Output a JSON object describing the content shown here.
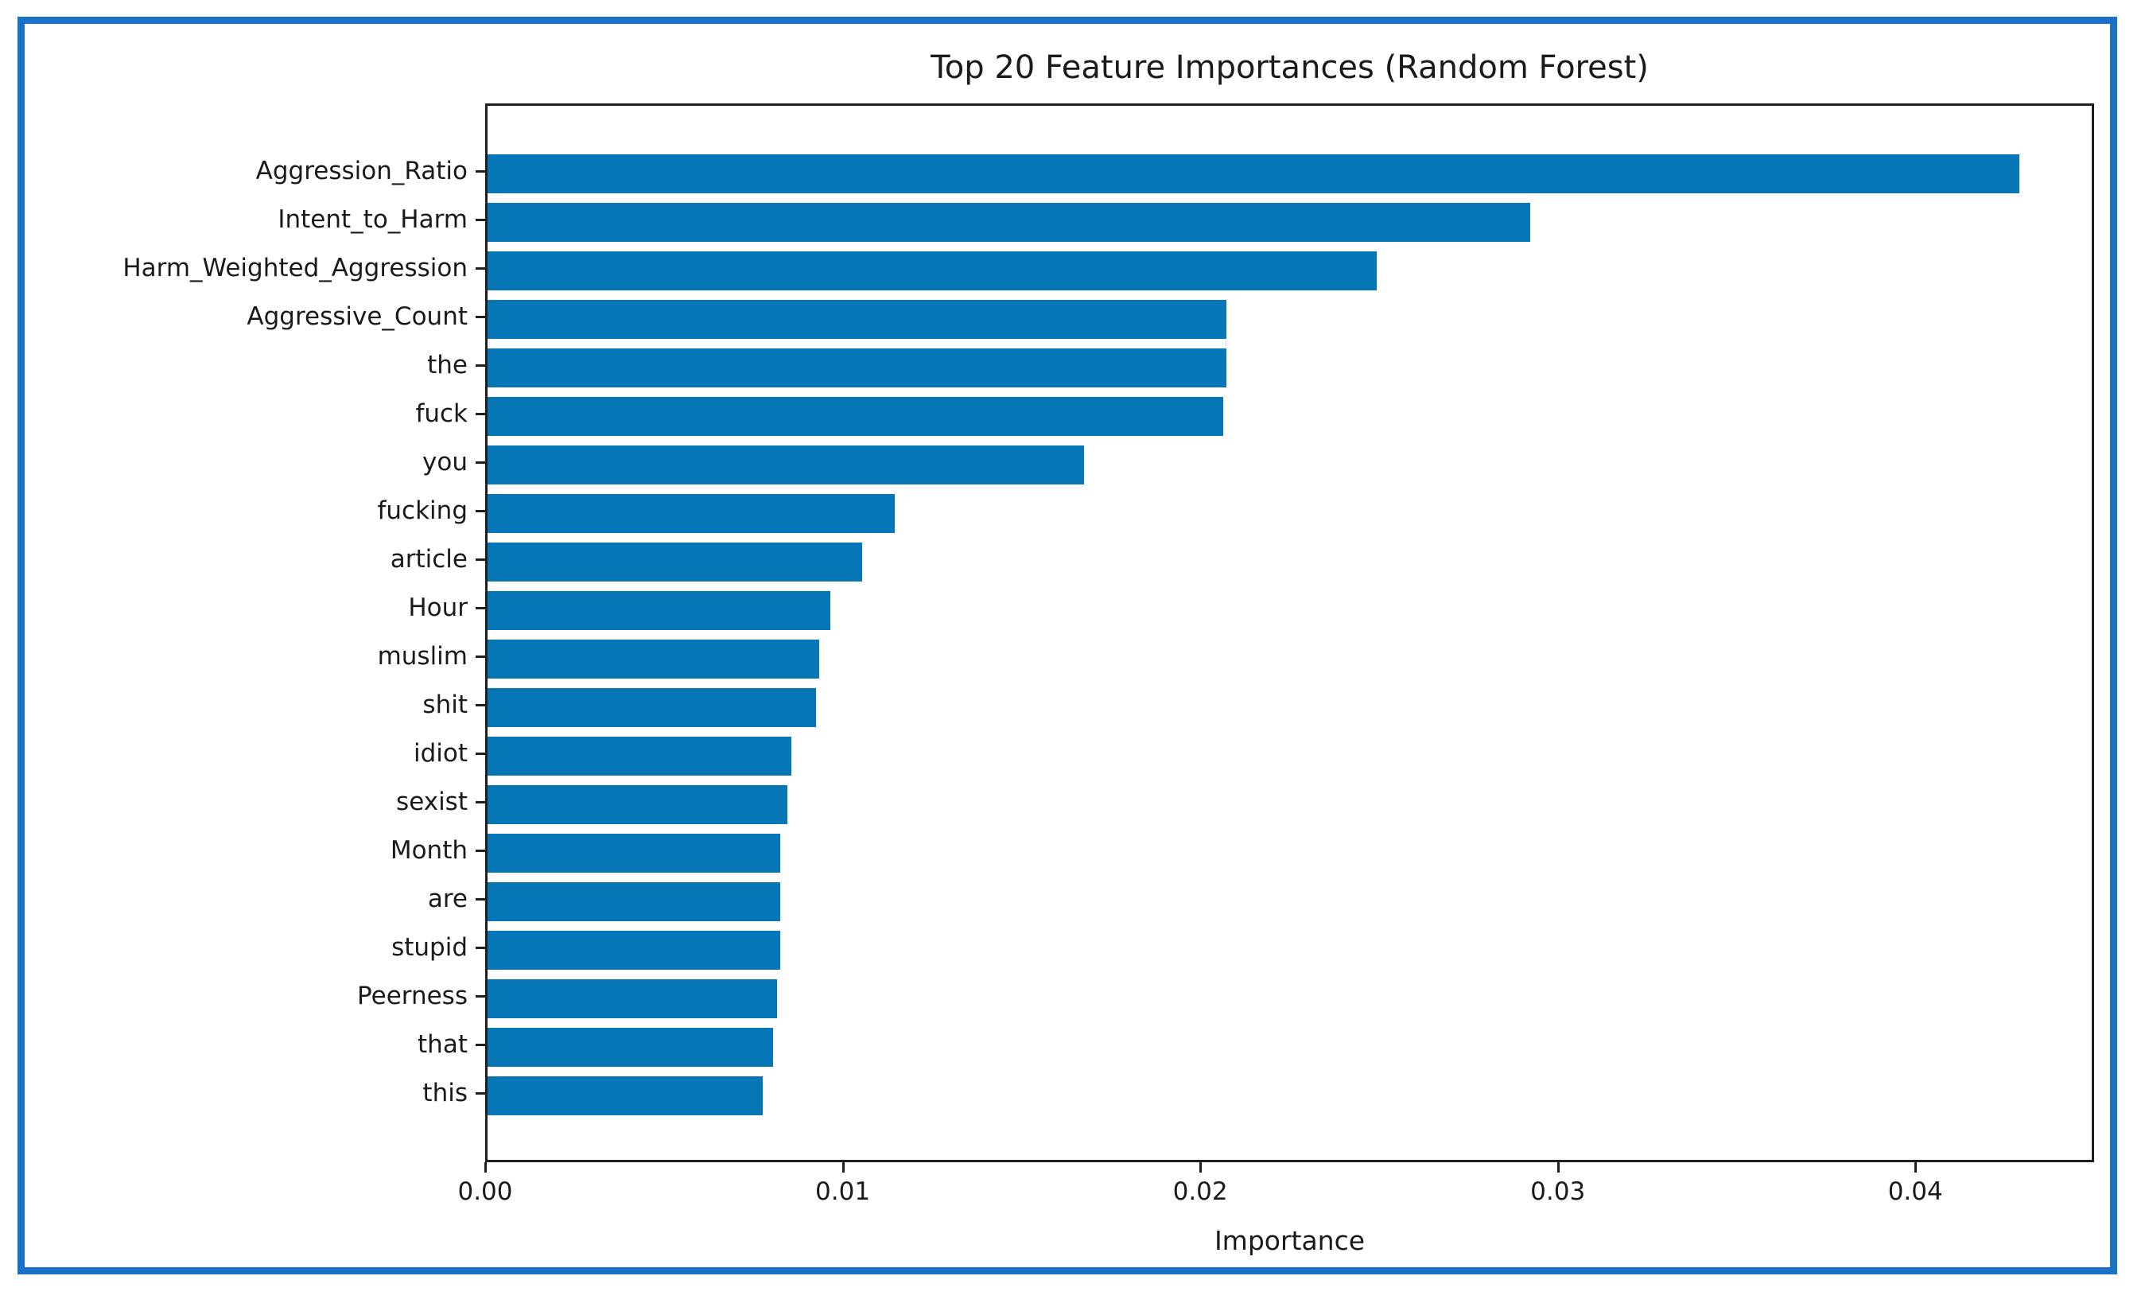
{
  "figure": {
    "title": "Top 20 Feature Importances (Random Forest)",
    "xlabel": "Importance"
  },
  "colors": {
    "bar": "#0776b7",
    "outer_border": "#1b71c8",
    "axis": "#1f1f1f"
  },
  "chart_data": {
    "type": "bar",
    "orientation": "horizontal",
    "title": "Top 20 Feature Importances (Random Forest)",
    "xlabel": "Importance",
    "ylabel": "",
    "categories": [
      "Aggression_Ratio",
      "Intent_to_Harm",
      "Harm_Weighted_Aggression",
      "Aggressive_Count",
      "the",
      "fuck",
      "you",
      "fucking",
      "article",
      "Hour",
      "muslim",
      "shit",
      "idiot",
      "sexist",
      "Month",
      "are",
      "stupid",
      "Peerness",
      "that",
      "this"
    ],
    "values": [
      0.0429,
      0.0292,
      0.0249,
      0.0207,
      0.0207,
      0.0206,
      0.0167,
      0.0114,
      0.0105,
      0.0096,
      0.0093,
      0.0092,
      0.0085,
      0.0084,
      0.0082,
      0.0082,
      0.0082,
      0.0081,
      0.008,
      0.0077
    ],
    "xlim": [
      0,
      0.045
    ],
    "xtick_labels": [
      "0.00",
      "0.01",
      "0.02",
      "0.03",
      "0.04"
    ],
    "xtick_values": [
      0,
      0.01,
      0.02,
      0.03,
      0.04
    ],
    "grid": false,
    "legend": "none",
    "bar_color": "#0776b7"
  }
}
